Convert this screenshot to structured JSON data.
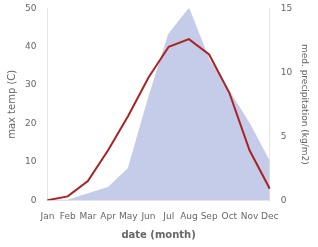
{
  "chart_data": {
    "type": "line",
    "xlabel": "date (month)",
    "ylabel": "max temp (C)",
    "y2label": "med. precipitation (kg/m2)",
    "categories": [
      "Jan",
      "Feb",
      "Mar",
      "Apr",
      "May",
      "Jun",
      "Jul",
      "Aug",
      "Sep",
      "Oct",
      "Nov",
      "Dec"
    ],
    "series": [
      {
        "type": "area",
        "axis": "y2",
        "color": "#c5ccea",
        "values": [
          0,
          0,
          0.5,
          1,
          2.5,
          8,
          13,
          15,
          11,
          8.5,
          6,
          3
        ]
      },
      {
        "type": "line",
        "color": "#aa2222",
        "values": [
          0,
          1,
          5,
          13,
          22,
          32,
          40,
          42,
          38,
          28,
          13,
          3
        ]
      }
    ],
    "ylim": [
      0,
      50
    ],
    "yticks": [
      0,
      10,
      20,
      30,
      40,
      50
    ],
    "y2lim": [
      0,
      15
    ],
    "y2ticks": [
      0,
      5,
      10,
      15
    ],
    "grid": false
  }
}
